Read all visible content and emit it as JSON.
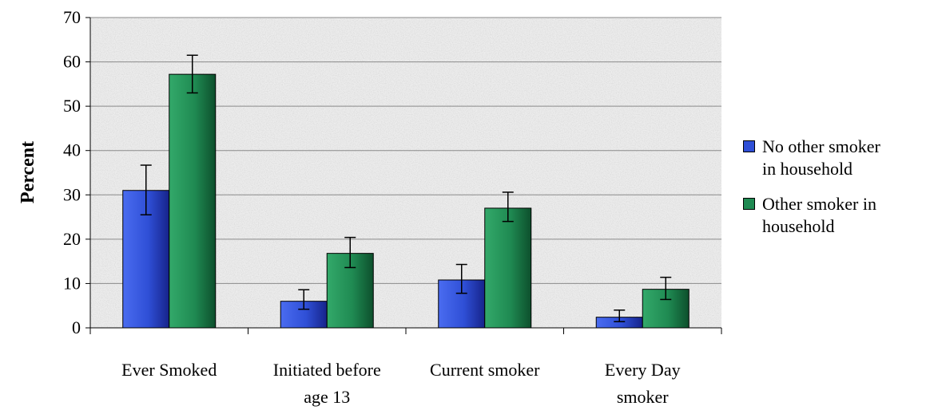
{
  "chart_data": {
    "type": "bar",
    "title": "",
    "xlabel": "",
    "ylabel": "Percent",
    "ylim": [
      0,
      70
    ],
    "yticks": [
      0,
      10,
      20,
      30,
      40,
      50,
      60,
      70
    ],
    "grid": true,
    "legend_position": "right",
    "categories": [
      [
        "Ever Smoked"
      ],
      [
        "Initiated before",
        "age 13"
      ],
      [
        "Current smoker"
      ],
      [
        "Every Day",
        "smoker"
      ]
    ],
    "series": [
      {
        "name": "No other smoker in household",
        "legend_lines": [
          "No other smoker",
          "in household"
        ],
        "color": "#2f4fd6",
        "values": [
          31,
          6,
          10.8,
          2.4
        ],
        "error_low": [
          25.5,
          4.2,
          7.8,
          1.4
        ],
        "error_high": [
          36.7,
          8.6,
          14.3,
          4.0
        ]
      },
      {
        "name": "Other smoker in household",
        "legend_lines": [
          "Other smoker in",
          "household"
        ],
        "color": "#1f8a52",
        "values": [
          57.2,
          16.8,
          27,
          8.7
        ],
        "error_low": [
          53,
          13.6,
          24,
          6.4
        ],
        "error_high": [
          61.5,
          20.4,
          30.6,
          11.4
        ]
      }
    ]
  }
}
